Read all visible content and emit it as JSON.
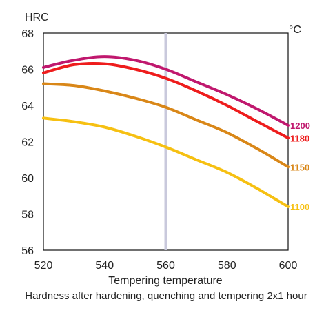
{
  "chart_data": {
    "type": "line",
    "title": "",
    "xlabel": "Tempering temperature",
    "ylabel": "HRC",
    "unit_label": "°C",
    "caption": "Hardness after hardening, quenching and tempering  2x1 hour",
    "xlim": [
      520,
      600
    ],
    "ylim": [
      56,
      68
    ],
    "x_ticks": [
      "520",
      "540",
      "560",
      "580",
      "600"
    ],
    "y_ticks": [
      "56",
      "58",
      "60",
      "62",
      "64",
      "66",
      "68"
    ],
    "grid": false,
    "marker_x": 560,
    "x": [
      520,
      530,
      540,
      550,
      560,
      570,
      580,
      590,
      600
    ],
    "series": [
      {
        "name": "1200",
        "color": "#c0186e",
        "values": [
          66.1,
          66.5,
          66.7,
          66.5,
          66.0,
          65.3,
          64.6,
          63.8,
          62.9
        ]
      },
      {
        "name": "1180",
        "color": "#ee1c1c",
        "values": [
          65.8,
          66.25,
          66.3,
          66.0,
          65.5,
          64.8,
          64.0,
          63.1,
          62.2
        ]
      },
      {
        "name": "1150",
        "color": "#d98718",
        "values": [
          65.2,
          65.1,
          64.8,
          64.4,
          63.9,
          63.2,
          62.5,
          61.6,
          60.6
        ]
      },
      {
        "name": "1100",
        "color": "#f6c012",
        "values": [
          63.3,
          63.1,
          62.8,
          62.3,
          61.7,
          61.0,
          60.3,
          59.4,
          58.4
        ]
      }
    ]
  }
}
